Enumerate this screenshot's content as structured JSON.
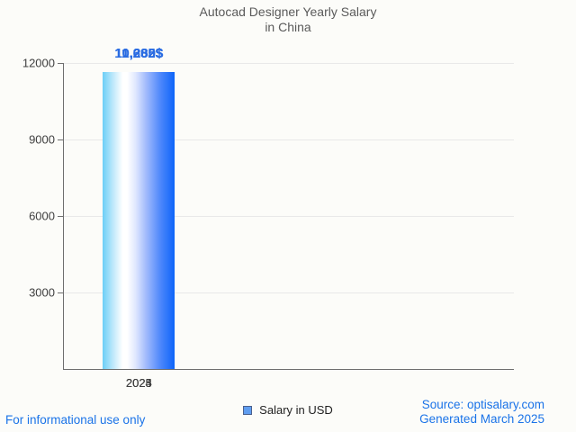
{
  "title": {
    "line1": "Autocad Designer Yearly Salary",
    "line2": "in China"
  },
  "chart_data": {
    "type": "bar",
    "title": "Autocad Designer Yearly Salary in China",
    "categories": [
      "2023",
      "2024",
      "2025"
    ],
    "values": [
      10280,
      11205,
      11632
    ],
    "value_labels": [
      "10,280$",
      "11,205$",
      "11,632$"
    ],
    "series": [
      {
        "name": "Salary in USD",
        "values": [
          10280,
          11205,
          11632
        ]
      }
    ],
    "xlabel": "",
    "ylabel": "",
    "ylim": [
      0,
      12000
    ],
    "yticks": [
      3000,
      6000,
      9000,
      12000
    ],
    "ytick_labels": [
      "3000",
      "6000",
      "9000",
      "12000"
    ],
    "grid": true,
    "legend_position": "bottom"
  },
  "legend": {
    "label": "Salary in USD",
    "swatch_fill": "#5f9df0",
    "swatch_border": "#4c618c"
  },
  "footer": {
    "left": "For informational use only",
    "source": "Source: optisalary.com",
    "generated": "Generated March 2025"
  },
  "colors": {
    "value_label": "#2a6ce2",
    "footer_link": "#1a73e8",
    "bar_gradient_left": "#6ccff7",
    "bar_gradient_mid": "#ffffff",
    "bar_gradient_right": "#0d64f9",
    "axis": "#6e6e6e",
    "gridline": "#e9e9e9",
    "axis_text": "#3f3f3f",
    "title_text": "#5a5a5a",
    "background": "#fcfcf9"
  }
}
